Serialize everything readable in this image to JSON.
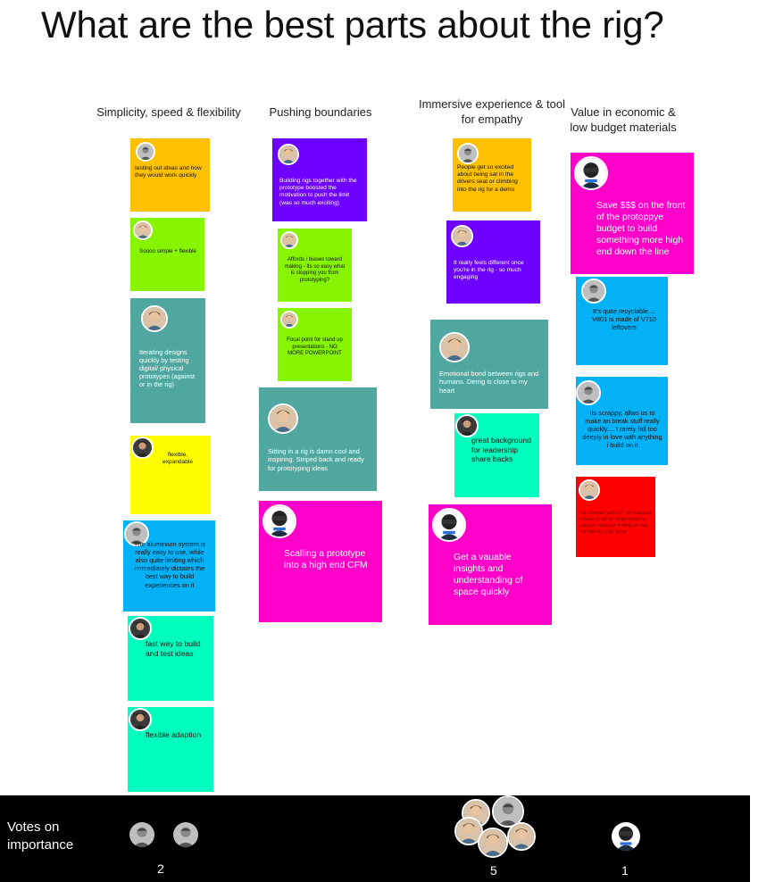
{
  "title": "What are the best parts about the rig?",
  "columns": {
    "c1": "Simplicity, speed & flexibility",
    "c2": "Pushing boundaries",
    "c3": "Immersive experience & tool for empathy",
    "c4": "Value in economic & low budget materials"
  },
  "notes": {
    "n1": "testing out ideas and how they would work quickly",
    "n2": "Soooo simple + flexible",
    "n3": "Iterating designs quickly by testing digital/ physical prototypes (against or in the rig)",
    "n4": "flexible, expandable",
    "n5": "The aluminium system is really easy to use, while also quite limiting which immediately dictates the best way to build experiences on it",
    "n6": "fast way to build and test ideas",
    "n7": "flexible adaption",
    "n8": "Building rigs together with the prototype boosted the motivation to push the limit (was so much exciting)",
    "n9": "Affords / biases toward making - Its so easy what is stopping you from prototyping?",
    "n10": "Focal point for stand up presentations - NO MORE POWERPOINT",
    "n11": "Sitting in a rig is damn cool and inspiring. Striped back and ready for prototyping ideas",
    "n12": "Scalling a prototype into a high end CFM",
    "n13": "People get so excited about being sat in the drivers seat or climbing into the rig for a demo",
    "n14": "It really feels different once you're in the rig - so much engaging",
    "n15": "Emotional bond between rigs and humans. Derrig is close to my heart",
    "n16": "great background for leadership share backs",
    "n17": "Get a vauable insights and understanding of space quickly",
    "n18": "Save $$$ on the front of the protoppye budget to build something more high end down the line",
    "n19": "It's quite recyclable.... V801 is made of V710 leftovers",
    "n20": "Its scrappy, allws us to make an break stuff really quickly.... I rarely fall too deeply in love with anything i build on it",
    "n21": "first contact with VIT we had and proved to be an opportunity to replace physical testing for low complexity (big) tests"
  },
  "votes": {
    "label": "Votes on importance",
    "counts": [
      "2",
      "5",
      "1"
    ]
  },
  "colors": {
    "orange": "#ffc000",
    "lime": "#87f500",
    "teal": "#4fa79f",
    "yellow": "#ffff00",
    "blue": "#03b1f7",
    "mint": "#00ffbf",
    "purple": "#6d00ff",
    "magenta": "#ff00c8",
    "red": "#ff0000"
  }
}
